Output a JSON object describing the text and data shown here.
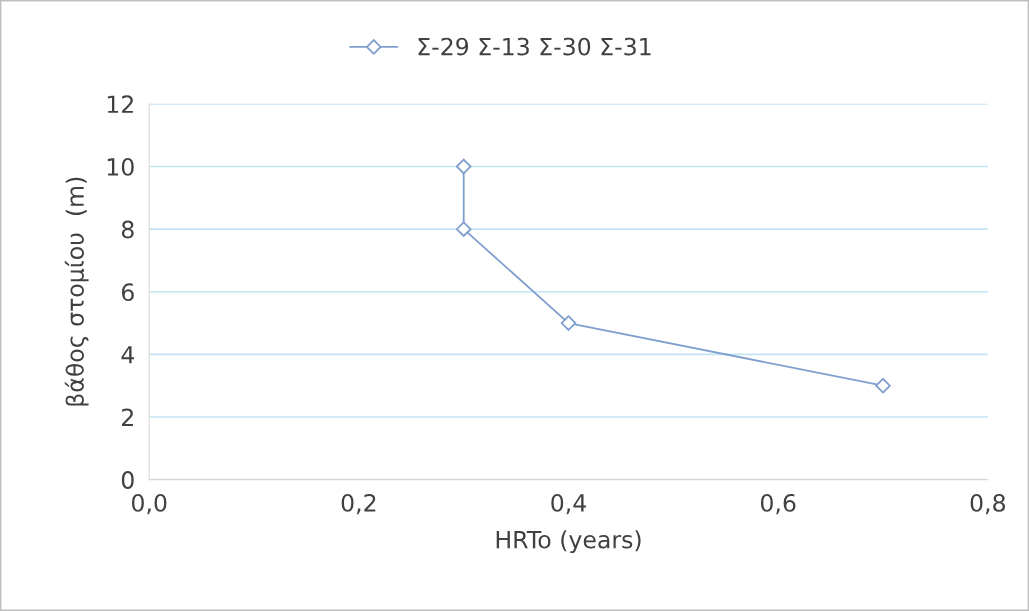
{
  "chart_data": {
    "type": "line",
    "xlabel": "HRTo (years)",
    "ylabel": "βάθος στομίου  (m)",
    "series": [
      {
        "name": "Σ-29 Σ-13 Σ-30 Σ-31",
        "color": "#7f9fcf",
        "x": [
          0.3,
          0.3,
          0.4,
          0.7
        ],
        "values": [
          10,
          8,
          5,
          3
        ]
      }
    ],
    "xlim": [
      0,
      0.8
    ],
    "xticks": [
      {
        "value": 0,
        "label": "0,0"
      },
      {
        "value": 0.2,
        "label": "0,2"
      },
      {
        "value": 0.4,
        "label": "0,4"
      },
      {
        "value": 0.6,
        "label": "0,6"
      },
      {
        "value": 0.8,
        "label": "0,8"
      }
    ],
    "ylim": [
      0,
      12
    ],
    "yticks": [
      0,
      2,
      4,
      6,
      8,
      10,
      12
    ],
    "grid": "y",
    "legend": "top",
    "marker": "diamond",
    "line_style": "solid"
  }
}
